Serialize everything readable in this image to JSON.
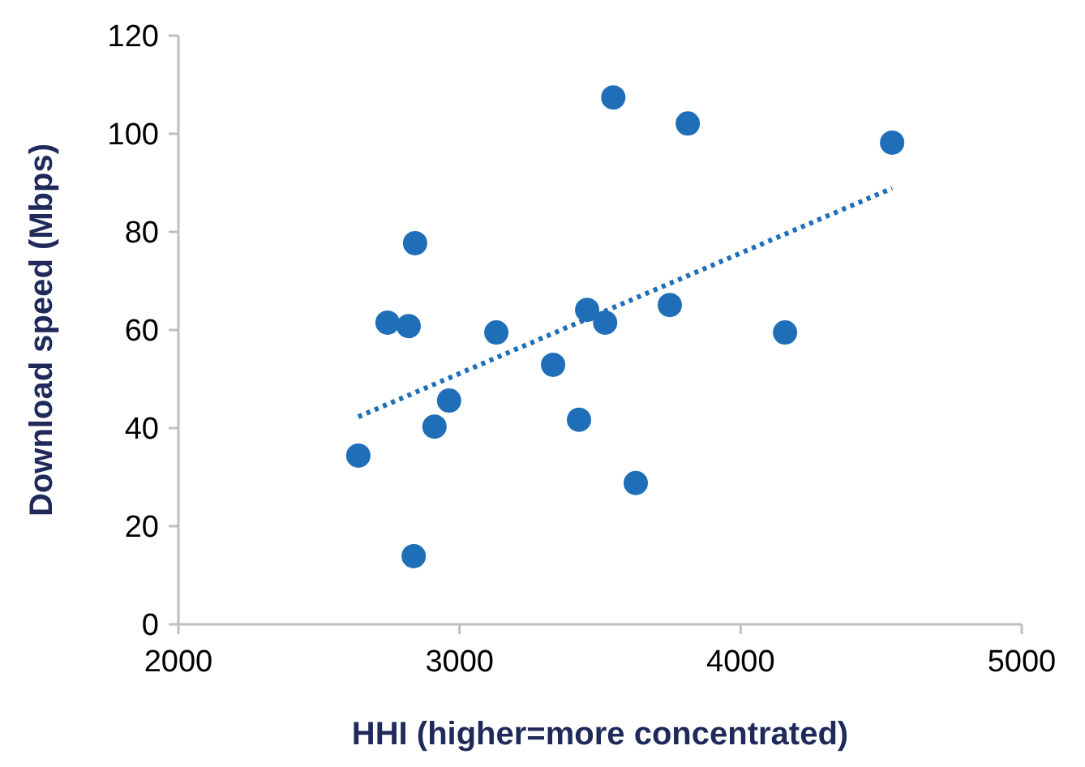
{
  "chart_data": {
    "type": "scatter",
    "xlabel": "HHI (higher=more concentrated)",
    "ylabel": "Download speed (Mbps)",
    "xlim": [
      2000,
      5000
    ],
    "xticks": [
      2000,
      3000,
      4000,
      5000
    ],
    "ylim": [
      0,
      120
    ],
    "yticks": [
      0,
      20,
      40,
      60,
      80,
      100,
      120
    ],
    "grid": false,
    "series": [
      {
        "color": "#1f6fb8",
        "marker": "circle",
        "x": [
          2640,
          2837,
          2744,
          2819,
          2842,
          2911,
          2963,
          3131,
          3333,
          3425,
          3454,
          3518,
          3547,
          3627,
          3748,
          3812,
          4158,
          4539
        ],
        "values": [
          34.4,
          13.9,
          61.5,
          60.8,
          77.7,
          40.3,
          45.6,
          59.5,
          52.9,
          41.7,
          64.1,
          61.5,
          107.4,
          28.8,
          65.1,
          102.1,
          59.5,
          98.2
        ]
      },
      {
        "type": "line",
        "color": "#1f6fb8",
        "line_style": "dotted",
        "x": [
          2640,
          4539
        ],
        "values": [
          42.3,
          88.9
        ]
      }
    ]
  }
}
